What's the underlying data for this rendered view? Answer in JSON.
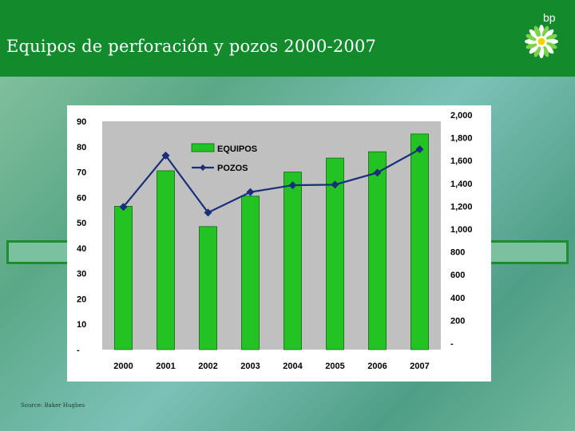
{
  "header": {
    "title": "Equipos de perforación y pozos 2000-2007",
    "logo_text": "bp"
  },
  "footer": {
    "source": "Source: Baker Hughes"
  },
  "colors": {
    "header_bg": "#138a2b",
    "bar_fill": "#22c322",
    "line": "#1a2f7a",
    "plot_bg": "#c0c0c0",
    "band_border": "#1e8c2e"
  },
  "chart_data": {
    "type": "bar",
    "title": "",
    "categories": [
      "2000",
      "2001",
      "2002",
      "2003",
      "2004",
      "2005",
      "2006",
      "2007"
    ],
    "series": [
      {
        "name": "EQUIPOS",
        "type": "bar",
        "axis": "left",
        "values": [
          56.5,
          70.5,
          48.5,
          60.5,
          70,
          75.5,
          78,
          85
        ]
      },
      {
        "name": "POZOS",
        "type": "line",
        "axis": "right",
        "values": [
          1250,
          1700,
          1200,
          1380,
          1440,
          1445,
          1550,
          1755
        ]
      }
    ],
    "y_left": {
      "ylim": [
        0,
        90
      ],
      "ticks": [
        "-",
        "10",
        "20",
        "30",
        "40",
        "50",
        "60",
        "70",
        "80",
        "90"
      ]
    },
    "y_right": {
      "ylim": [
        0,
        2000
      ],
      "ticks": [
        "-",
        "200",
        "400",
        "600",
        "800",
        "1,000",
        "1,200",
        "1,400",
        "1,600",
        "1,800",
        "2,000"
      ]
    },
    "legend_position": "top-center",
    "grid": false
  }
}
